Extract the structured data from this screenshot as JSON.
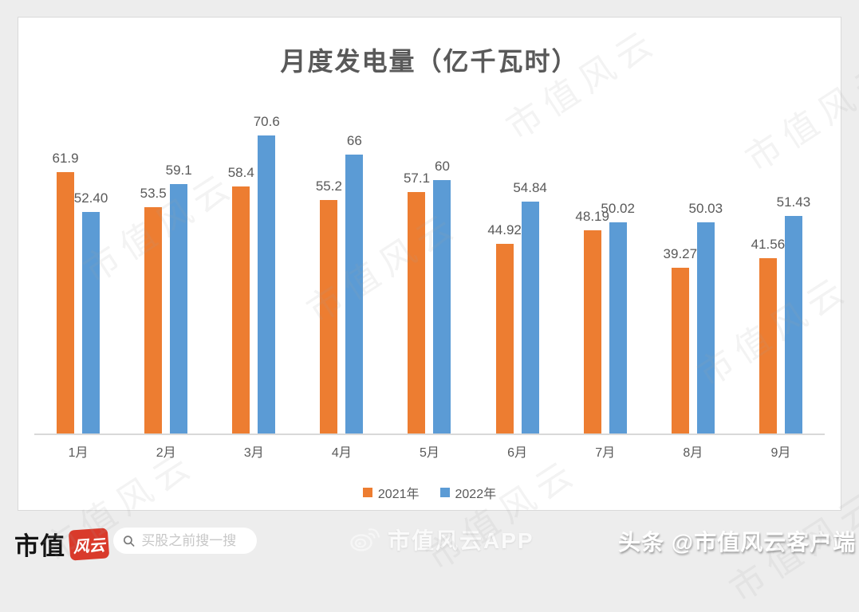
{
  "chart_data": {
    "type": "bar",
    "title": "月度发电量（亿千瓦时）",
    "categories": [
      "1月",
      "2月",
      "3月",
      "4月",
      "5月",
      "6月",
      "7月",
      "8月",
      "9月"
    ],
    "series": [
      {
        "name": "2021年",
        "color": "#ED7D31",
        "values": [
          61.9,
          53.5,
          58.4,
          55.2,
          57.1,
          44.92,
          48.19,
          39.27,
          41.56
        ],
        "labels": [
          "61.9",
          "53.5",
          "58.4",
          "55.2",
          "57.1",
          "44.92",
          "48.19",
          "39.27",
          "41.56"
        ]
      },
      {
        "name": "2022年",
        "color": "#5B9BD5",
        "values": [
          52.4,
          59.1,
          70.6,
          66,
          60,
          54.84,
          50.02,
          50.03,
          51.43
        ],
        "labels": [
          "52.40",
          "59.1",
          "70.6",
          "66",
          "60",
          "54.84",
          "50.02",
          "50.03",
          "51.43"
        ]
      }
    ],
    "ylim": [
      0,
      75
    ],
    "grid": false,
    "legend_position": "bottom",
    "data_label_color": "#595959",
    "axis_label_color": "#595959"
  },
  "watermark_text": "市值风云",
  "footer": {
    "brand_text": "市值",
    "brand_badge": "风云",
    "search_placeholder": "买股之前搜一搜",
    "app_label": "市值风云APP",
    "right_label": "头条 @市值风云客户端"
  },
  "colors": {
    "background": "#EDEDED",
    "card_background": "#FFFFFF",
    "card_border": "#D9D9D9",
    "title_text": "#595959",
    "badge_red": "#D93A2B"
  }
}
